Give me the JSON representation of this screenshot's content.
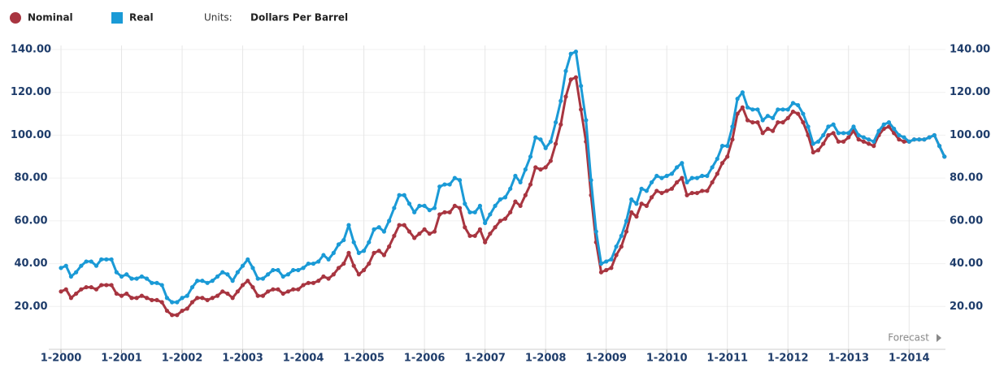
{
  "chart_data": {
    "type": "line",
    "legend_units_label": "Units:",
    "units": "Dollars Per Barrel",
    "annotation": "Forecast",
    "categories": [
      "1-2000",
      null,
      null,
      null,
      null,
      null,
      null,
      null,
      null,
      null,
      null,
      null,
      "1-2001",
      null,
      null,
      null,
      null,
      null,
      null,
      null,
      null,
      null,
      null,
      null,
      "1-2002",
      null,
      null,
      null,
      null,
      null,
      null,
      null,
      null,
      null,
      null,
      null,
      "1-2003",
      null,
      null,
      null,
      null,
      null,
      null,
      null,
      null,
      null,
      null,
      null,
      "1-2004",
      null,
      null,
      null,
      null,
      null,
      null,
      null,
      null,
      null,
      null,
      null,
      "1-2005",
      null,
      null,
      null,
      null,
      null,
      null,
      null,
      null,
      null,
      null,
      null,
      "1-2006",
      null,
      null,
      null,
      null,
      null,
      null,
      null,
      null,
      null,
      null,
      null,
      "1-2007",
      null,
      null,
      null,
      null,
      null,
      null,
      null,
      null,
      null,
      null,
      null,
      "1-2008",
      null,
      null,
      null,
      null,
      null,
      null,
      null,
      null,
      null,
      null,
      null,
      "1-2009",
      null,
      null,
      null,
      null,
      null,
      null,
      null,
      null,
      null,
      null,
      null,
      "1-2010",
      null,
      null,
      null,
      null,
      null,
      null,
      null,
      null,
      null,
      null,
      null,
      "1-2011",
      null,
      null,
      null,
      null,
      null,
      null,
      null,
      null,
      null,
      null,
      null,
      "1-2012",
      null,
      null,
      null,
      null,
      null,
      null,
      null,
      null,
      null,
      null,
      null,
      "1-2013",
      null,
      null,
      null,
      null,
      null,
      null,
      null,
      null,
      null,
      null,
      null,
      "1-2014",
      null,
      null,
      null,
      null,
      null,
      null,
      null
    ],
    "series": [
      {
        "name": "Nominal",
        "color": "#a83540",
        "values": [
          27,
          28,
          24,
          26,
          28,
          29,
          29,
          28,
          30,
          30,
          30,
          26,
          25,
          26,
          24,
          24,
          25,
          24,
          23,
          23,
          22,
          18,
          16,
          16,
          18,
          19,
          22,
          24,
          24,
          23,
          24,
          25,
          27,
          26,
          24,
          27,
          30,
          32,
          29,
          25,
          25,
          27,
          28,
          28,
          26,
          27,
          28,
          28,
          30,
          31,
          31,
          32,
          34,
          33,
          35,
          38,
          40,
          45,
          39,
          35,
          37,
          40,
          45,
          46,
          44,
          48,
          53,
          58,
          58,
          55,
          52,
          54,
          56,
          54,
          55,
          63,
          64,
          64,
          67,
          66,
          57,
          53,
          53,
          56,
          50,
          54,
          57,
          60,
          61,
          64,
          69,
          67,
          72,
          77,
          85,
          84,
          85,
          88,
          96,
          105,
          118,
          126,
          127,
          112,
          97,
          72,
          50,
          36,
          37,
          38,
          44,
          48,
          55,
          64,
          62,
          68,
          67,
          71,
          74,
          73,
          74,
          75,
          78,
          80,
          72,
          73,
          73,
          74,
          74,
          78,
          82,
          87,
          90,
          98,
          110,
          113,
          107,
          106,
          106,
          101,
          103,
          102,
          106,
          106,
          108,
          111,
          110,
          106,
          100,
          92,
          93,
          96,
          100,
          101,
          97,
          97,
          99,
          102,
          98,
          97,
          96,
          95,
          100,
          103,
          104,
          101,
          98,
          97,
          97,
          98,
          98,
          98,
          99,
          100,
          95,
          90
        ]
      },
      {
        "name": "Real",
        "color": "#1a9ad6",
        "values": [
          38,
          39,
          34,
          36,
          39,
          41,
          41,
          39,
          42,
          42,
          42,
          36,
          34,
          35,
          33,
          33,
          34,
          33,
          31,
          31,
          30,
          24,
          22,
          22,
          24,
          25,
          29,
          32,
          32,
          31,
          32,
          34,
          36,
          35,
          32,
          36,
          39,
          42,
          38,
          33,
          33,
          35,
          37,
          37,
          34,
          35,
          37,
          37,
          38,
          40,
          40,
          41,
          44,
          42,
          45,
          49,
          51,
          58,
          50,
          45,
          46,
          50,
          56,
          57,
          55,
          60,
          66,
          72,
          72,
          68,
          64,
          67,
          67,
          65,
          66,
          76,
          77,
          77,
          80,
          79,
          68,
          64,
          64,
          67,
          59,
          63,
          67,
          70,
          71,
          75,
          81,
          78,
          84,
          90,
          99,
          98,
          94,
          97,
          106,
          116,
          130,
          138,
          139,
          123,
          107,
          79,
          55,
          40,
          41,
          42,
          48,
          53,
          60,
          70,
          68,
          75,
          74,
          78,
          81,
          80,
          81,
          82,
          85,
          87,
          78,
          80,
          80,
          81,
          81,
          85,
          89,
          95,
          95,
          104,
          117,
          120,
          113,
          112,
          112,
          107,
          109,
          108,
          112,
          112,
          112,
          115,
          114,
          110,
          104,
          96,
          97,
          100,
          104,
          105,
          101,
          101,
          101,
          104,
          100,
          99,
          98,
          97,
          102,
          105,
          106,
          103,
          100,
          99,
          97,
          98,
          98,
          98,
          99,
          100,
          95,
          90
        ]
      }
    ],
    "ylim": [
      0,
      140
    ],
    "yticks": [
      {
        "value": 20,
        "label": "20.00"
      },
      {
        "value": 40,
        "label": "40.00"
      },
      {
        "value": 60,
        "label": "60.00"
      },
      {
        "value": 80,
        "label": "80.00"
      },
      {
        "value": 100,
        "label": "100.00"
      },
      {
        "value": 120,
        "label": "120.00"
      },
      {
        "value": 140,
        "label": "140.00"
      }
    ],
    "y2lim": [
      0,
      140
    ],
    "y2ticks": [
      {
        "value": 20,
        "label": "20.00"
      },
      {
        "value": 40,
        "label": "40.00"
      },
      {
        "value": 60,
        "label": "60.00"
      },
      {
        "value": 80,
        "label": "80.00"
      },
      {
        "value": 100,
        "label": "100.00"
      },
      {
        "value": 120,
        "label": "120.00"
      },
      {
        "value": 140,
        "label": "140.00"
      }
    ],
    "grid": true
  }
}
